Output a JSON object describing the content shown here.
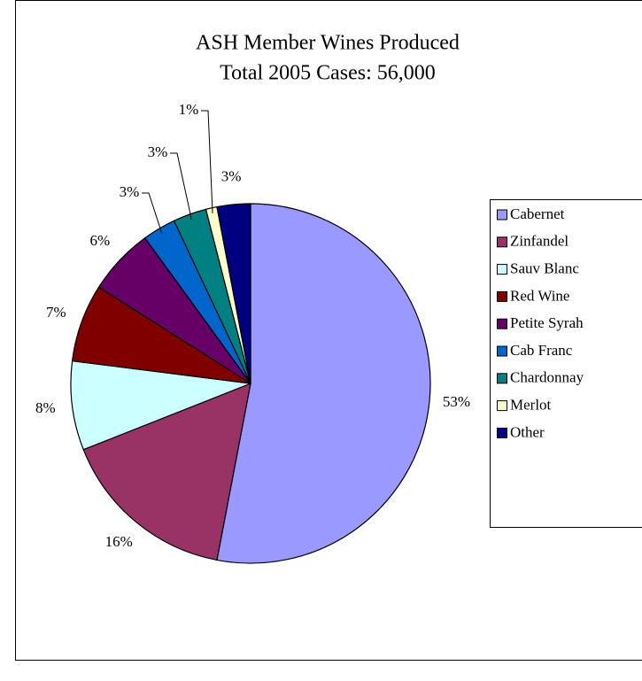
{
  "chart_data": {
    "type": "pie",
    "title": "ASH Member Wines Produced",
    "subtitle": "Total 2005 Cases:  56,000",
    "categories": [
      "Cabernet",
      "Zinfandel",
      "Sauv Blanc",
      "Red Wine",
      "Petite Syrah",
      "Cab Franc",
      "Chardonnay",
      "Merlot",
      "Other"
    ],
    "values": [
      53,
      16,
      8,
      7,
      6,
      3,
      3,
      1,
      3
    ],
    "value_labels": [
      "53%",
      "16%",
      "8%",
      "7%",
      "6%",
      "3%",
      "3%",
      "1%",
      "3%"
    ],
    "colors": [
      "#9999ff",
      "#993366",
      "#ccffff",
      "#800000",
      "#660066",
      "#0066cc",
      "#008080",
      "#ffffcc",
      "#000080"
    ],
    "legend": "right"
  }
}
